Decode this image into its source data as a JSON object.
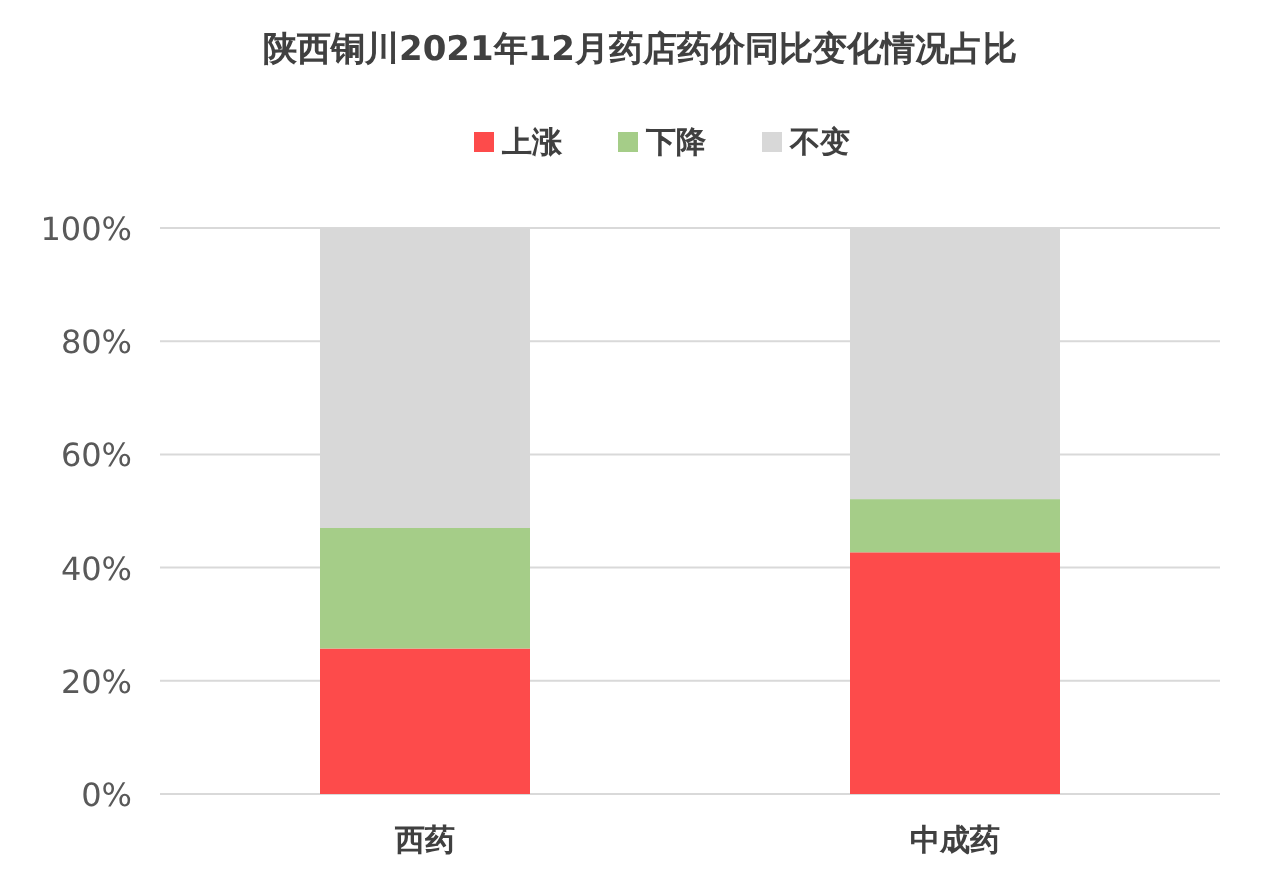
{
  "chart_data": {
    "type": "bar",
    "title": "陕西铜川2021年12月药店药价同比变化情况占比",
    "categories": [
      "西药",
      "中成药"
    ],
    "stacked": true,
    "series": [
      {
        "name": "上涨",
        "color": "#fd4b4b",
        "values": [
          25.7,
          42.7
        ]
      },
      {
        "name": "下降",
        "color": "#a5cd88",
        "values": [
          21.3,
          9.4
        ]
      },
      {
        "name": "不变",
        "color": "#d8d8d8",
        "values": [
          53.0,
          47.9
        ]
      }
    ],
    "ylim": [
      0,
      100
    ],
    "yticks": [
      {
        "value": 0,
        "label": "0%"
      },
      {
        "value": 20,
        "label": "20%"
      },
      {
        "value": 40,
        "label": "40%"
      },
      {
        "value": 60,
        "label": "60%"
      },
      {
        "value": 80,
        "label": "80%"
      },
      {
        "value": 100,
        "label": "100%"
      }
    ],
    "grid": "y",
    "legend": "top"
  }
}
